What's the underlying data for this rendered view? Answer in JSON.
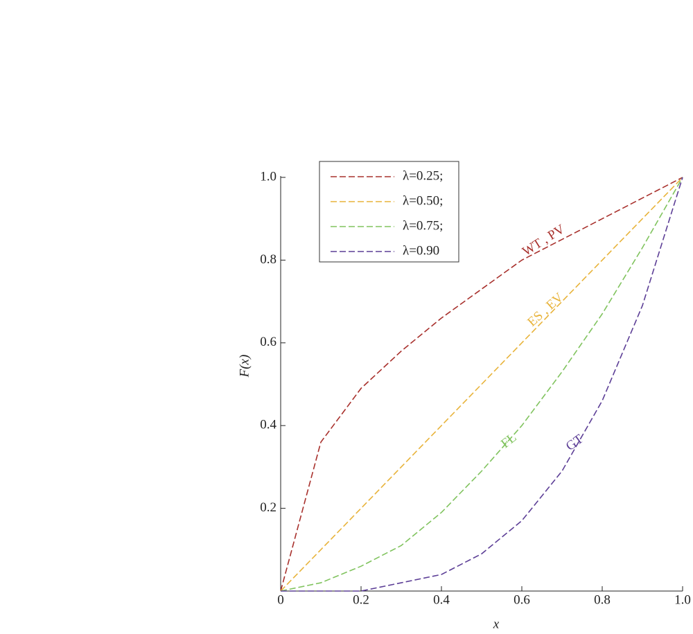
{
  "chart_data": {
    "type": "line",
    "xlabel": "x",
    "ylabel": "F(x)",
    "x": [
      0,
      0.1,
      0.2,
      0.3,
      0.4,
      0.5,
      0.6,
      0.7,
      0.8,
      0.9,
      1
    ],
    "series": [
      {
        "name": "λ=0.25;",
        "color": "#a8302c",
        "values": [
          0,
          0.36,
          0.49,
          0.58,
          0.66,
          0.73,
          0.8,
          0.85,
          0.9,
          0.95,
          1
        ]
      },
      {
        "name": "λ=0.50;",
        "color": "#e8b33a",
        "values": [
          0,
          0.1,
          0.2,
          0.3,
          0.4,
          0.5,
          0.6,
          0.7,
          0.8,
          0.9,
          1
        ]
      },
      {
        "name": "λ=0.75;",
        "color": "#80c35e",
        "values": [
          0,
          0.02,
          0.06,
          0.11,
          0.19,
          0.29,
          0.4,
          0.53,
          0.67,
          0.83,
          1
        ]
      },
      {
        "name": "λ=0.90",
        "color": "#5c3e96",
        "values": [
          0,
          0,
          0,
          0.02,
          0.04,
          0.09,
          0.17,
          0.29,
          0.46,
          0.69,
          1
        ]
      }
    ],
    "annotations": [
      "WT , PV",
      "ES , EV",
      "FL",
      "GT"
    ],
    "xlim": [
      0,
      1
    ],
    "ylim": [
      0,
      1
    ],
    "xticks": [
      0,
      0.2,
      0.4,
      0.6,
      0.8,
      {
        "value": 1,
        "label": "1.0"
      }
    ],
    "yticks": [
      0.2,
      0.4,
      0.6,
      0.8,
      {
        "value": 1,
        "label": "1.0"
      }
    ],
    "dashed": true,
    "grid": false,
    "legend": "upper left"
  }
}
